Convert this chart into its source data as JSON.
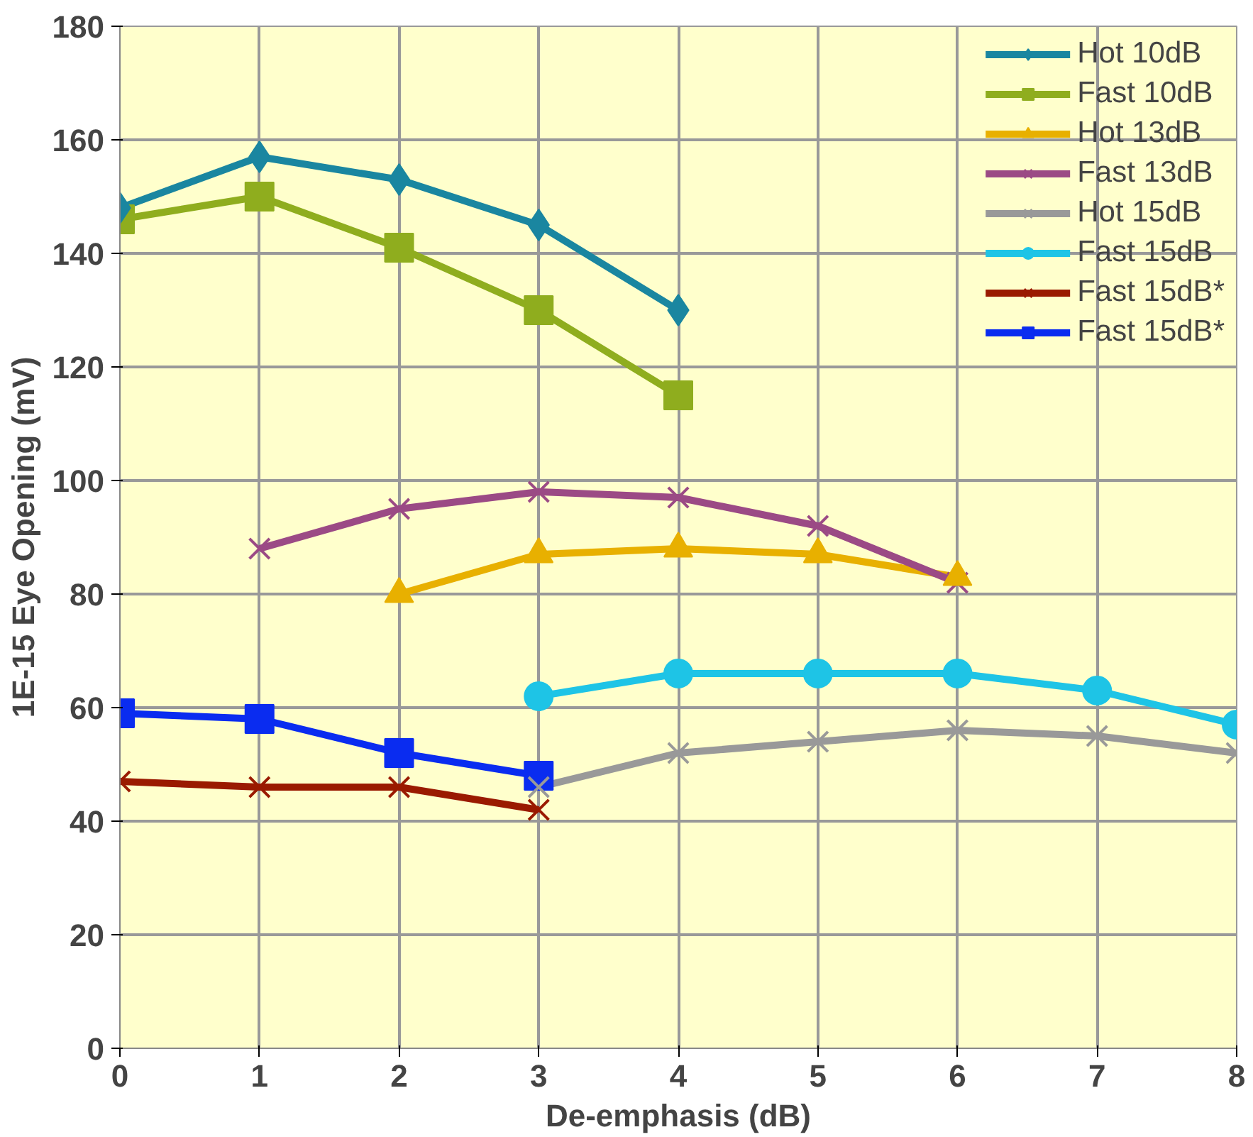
{
  "chart_data": {
    "type": "line",
    "xlabel": "De-emphasis (dB)",
    "ylabel": "1E-15 Eye Opening (mV)",
    "xlim": [
      0,
      8
    ],
    "xticks": [
      0,
      1,
      2,
      3,
      4,
      5,
      6,
      7,
      8
    ],
    "ylim": [
      0,
      180
    ],
    "yticks": [
      0,
      20,
      40,
      60,
      80,
      100,
      120,
      140,
      160,
      180
    ],
    "grid": true,
    "legend": "top right",
    "line_style": "solid",
    "series": [
      {
        "name": "Hot 10dB",
        "color": "#1a86a0",
        "marker": "diamond",
        "x": [
          0,
          1,
          2,
          3,
          4
        ],
        "values": [
          148,
          157,
          153,
          145,
          130
        ]
      },
      {
        "name": "Fast 10dB",
        "color": "#8fad1e",
        "marker": "square",
        "x": [
          0,
          1,
          2,
          3,
          4
        ],
        "values": [
          146,
          150,
          141,
          130,
          115
        ]
      },
      {
        "name": "Hot 13dB",
        "color": "#e8b000",
        "marker": "triangle",
        "x": [
          2,
          3,
          4,
          5,
          6
        ],
        "values": [
          80,
          87,
          88,
          87,
          83
        ]
      },
      {
        "name": "Fast 13dB",
        "color": "#9b4a85",
        "marker": "cross",
        "x": [
          1,
          2,
          3,
          4,
          5,
          6
        ],
        "values": [
          88,
          95,
          98,
          97,
          92,
          82
        ]
      },
      {
        "name": "Hot 15dB",
        "color": "#999999",
        "marker": "cross",
        "x": [
          3,
          4,
          5,
          6,
          7,
          8
        ],
        "values": [
          46,
          52,
          54,
          56,
          55,
          52
        ]
      },
      {
        "name": "Fast 15dB",
        "color": "#1ec4e6",
        "marker": "circle",
        "x": [
          3,
          4,
          5,
          6,
          7,
          8
        ],
        "values": [
          62,
          66,
          66,
          66,
          63,
          57
        ]
      },
      {
        "name": "Fast 15dB*",
        "color": "#9a1a00",
        "marker": "cross",
        "x": [
          0,
          1,
          2,
          3
        ],
        "values": [
          47,
          46,
          46,
          42
        ]
      },
      {
        "name": "Fast 15dB*",
        "color": "#0a2cf0",
        "marker": "square",
        "x": [
          0,
          1,
          2,
          3
        ],
        "values": [
          59,
          58,
          52,
          48
        ]
      }
    ]
  }
}
